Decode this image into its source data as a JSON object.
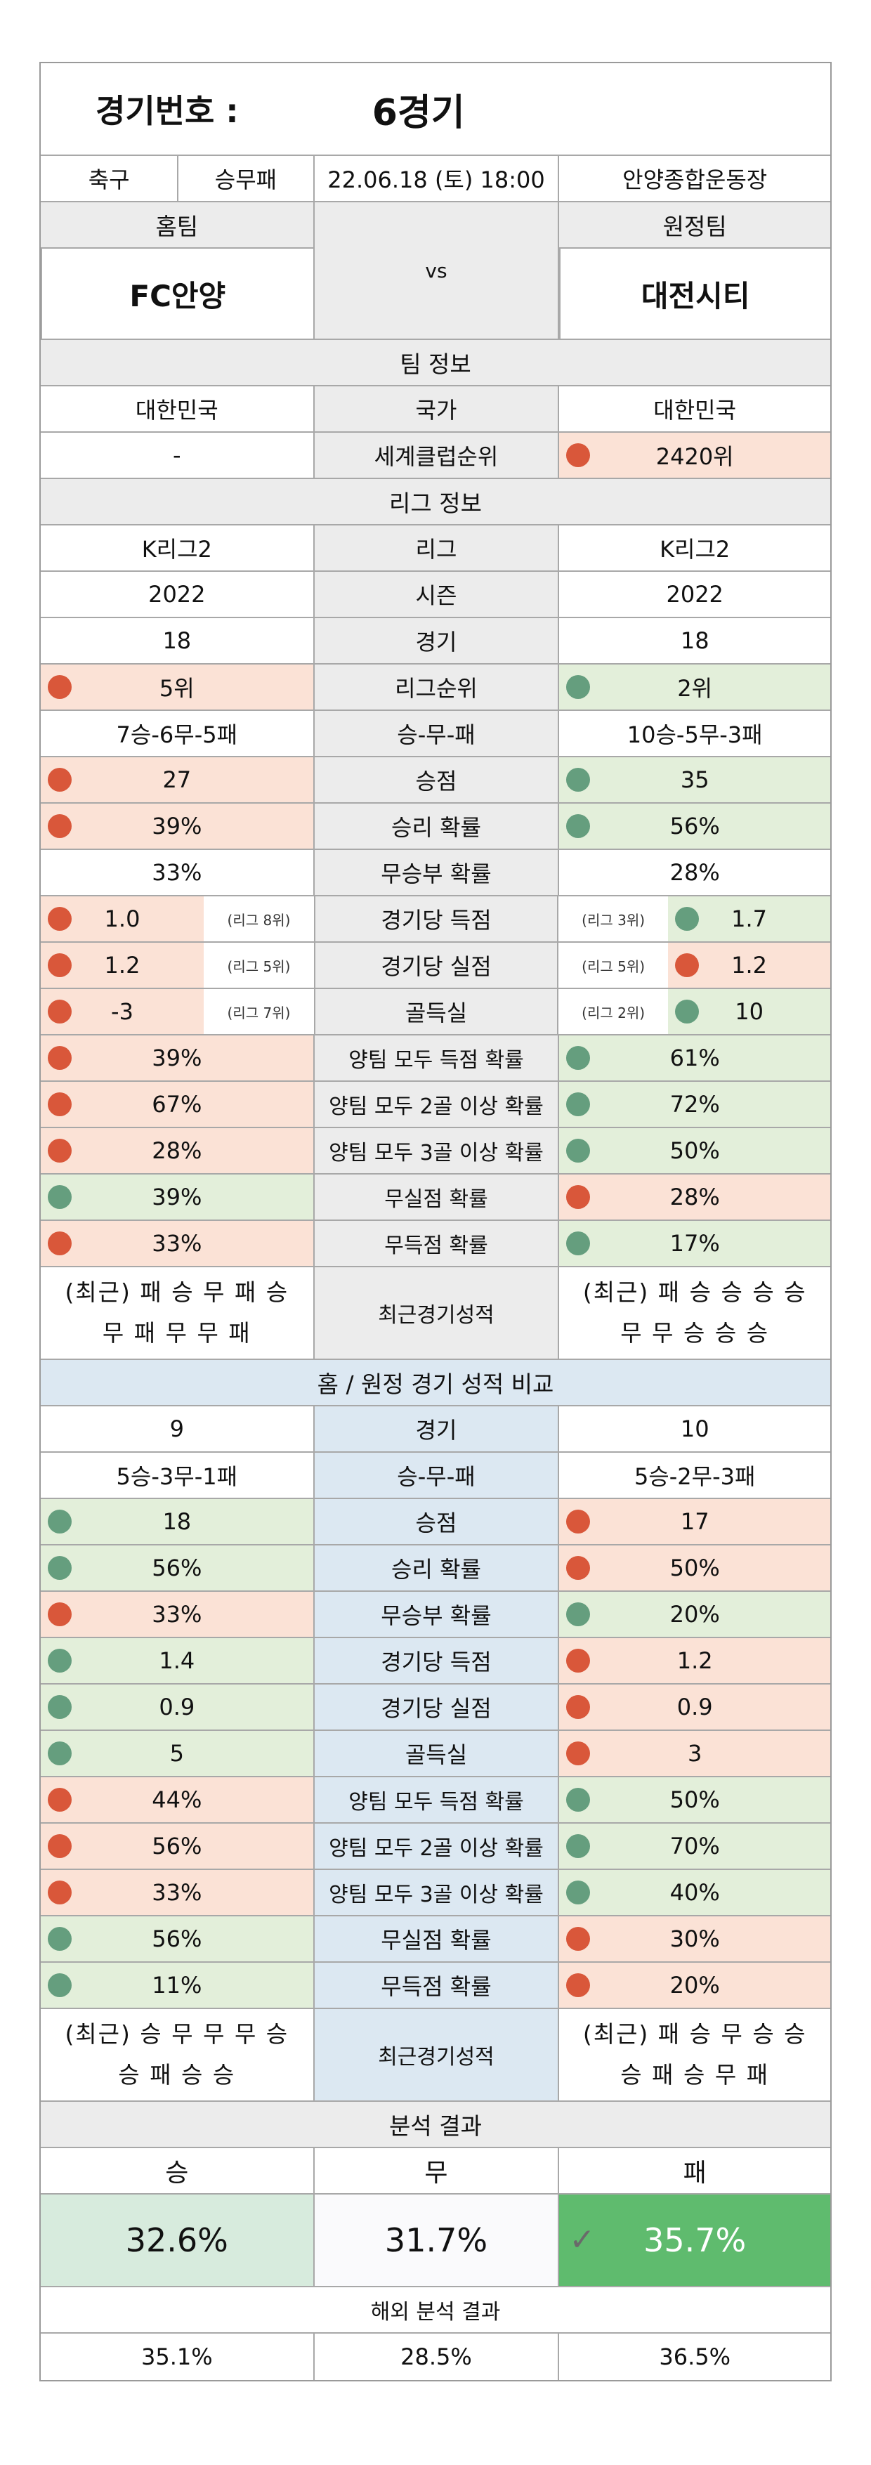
{
  "header": {
    "label": "경기번호 :",
    "game_no": "6경기"
  },
  "info": {
    "sport": "축구",
    "type": "승무패",
    "datetime": "22.06.18 (토) 18:00",
    "venue": "안양종합운동장"
  },
  "teams": {
    "home_label": "홈팀",
    "away_label": "원정팀",
    "vs": "vs",
    "home": "FC안양",
    "away": "대전시티"
  },
  "team_info": {
    "title": "팀 정보",
    "rows": [
      {
        "label": "국가",
        "home": "대한민국",
        "away": "대한민국"
      },
      {
        "label": "세계클럽순위",
        "home": "-",
        "away": "2420위"
      }
    ]
  },
  "league_info": {
    "title": "리그 정보",
    "rows": [
      {
        "label": "리그",
        "home": "K리그2",
        "away": "K리그2"
      },
      {
        "label": "시즌",
        "home": "2022",
        "away": "2022"
      },
      {
        "label": "경기",
        "home": "18",
        "away": "18"
      },
      {
        "label": "리그순위",
        "home": "5위",
        "away": "2위"
      },
      {
        "label": "승-무-패",
        "home": "7승-6무-5패",
        "away": "10승-5무-3패"
      },
      {
        "label": "승점",
        "home": "27",
        "away": "35"
      },
      {
        "label": "승리 확률",
        "home": "39%",
        "away": "56%"
      },
      {
        "label": "무승부 확률",
        "home": "33%",
        "away": "28%"
      }
    ],
    "rank_rows": [
      {
        "label": "경기당 득점",
        "home": "1.0",
        "home_rank": "(리그 8위)",
        "away": "1.7",
        "away_rank": "(리그 3위)"
      },
      {
        "label": "경기당 실점",
        "home": "1.2",
        "home_rank": "(리그 5위)",
        "away": "1.2",
        "away_rank": "(리그 5위)"
      },
      {
        "label": "골득실",
        "home": "-3",
        "home_rank": "(리그 7위)",
        "away": "10",
        "away_rank": "(리그 2위)"
      }
    ],
    "prob_rows": [
      {
        "label": "양팀 모두 득점 확률",
        "home": "39%",
        "away": "61%"
      },
      {
        "label": "양팀 모두 2골 이상 확률",
        "home": "67%",
        "away": "72%"
      },
      {
        "label": "양팀 모두 3골 이상 확률",
        "home": "28%",
        "away": "50%"
      },
      {
        "label": "무실점 확률",
        "home": "39%",
        "away": "28%"
      },
      {
        "label": "무득점 확률",
        "home": "33%",
        "away": "17%"
      }
    ],
    "recent": {
      "label": "최근경기성적",
      "home_1": "(최근) 패 승 무 패 승",
      "home_2": "무 패 무 무 패",
      "away_1": "(최근) 패 승 승 승 승",
      "away_2": "무 무 승 승 승"
    }
  },
  "homeaway": {
    "title": "홈 / 원정 경기 성적 비교",
    "rows": [
      {
        "label": "경기",
        "home": "9",
        "away": "10"
      },
      {
        "label": "승-무-패",
        "home": "5승-3무-1패",
        "away": "5승-2무-3패"
      },
      {
        "label": "승점",
        "home": "18",
        "away": "17"
      },
      {
        "label": "승리 확률",
        "home": "56%",
        "away": "50%"
      },
      {
        "label": "무승부 확률",
        "home": "33%",
        "away": "20%"
      },
      {
        "label": "경기당 득점",
        "home": "1.4",
        "away": "1.2"
      },
      {
        "label": "경기당 실점",
        "home": "0.9",
        "away": "0.9"
      },
      {
        "label": "골득실",
        "home": "5",
        "away": "3"
      },
      {
        "label": "양팀 모두 득점 확률",
        "home": "44%",
        "away": "50%"
      },
      {
        "label": "양팀 모두 2골 이상 확률",
        "home": "56%",
        "away": "70%"
      },
      {
        "label": "양팀 모두 3골 이상 확률",
        "home": "33%",
        "away": "40%"
      },
      {
        "label": "무실점 확률",
        "home": "56%",
        "away": "30%"
      },
      {
        "label": "무득점 확률",
        "home": "11%",
        "away": "20%"
      }
    ],
    "recent": {
      "label": "최근경기성적",
      "home_1": "(최근) 승 무 무 무 승",
      "home_2": "승 패 승 승",
      "away_1": "(최근) 패 승 무 승 승",
      "away_2": "승 패 승 무 패"
    }
  },
  "analysis": {
    "title": "분석 결과",
    "win_label": "승",
    "draw_label": "무",
    "loss_label": "패",
    "win": "32.6%",
    "draw": "31.7%",
    "loss": "35.7%",
    "overseas_title": "해외 분석 결과",
    "o_win": "35.1%",
    "o_draw": "28.5%",
    "o_loss": "36.5%"
  },
  "colors": {
    "red_bg": "#fbe2d6",
    "green_bg": "#e3efda",
    "red_dot": "#d9573a",
    "green_dot": "#659e7e",
    "pick_bg": "#5fbb6e",
    "win_bg": "#d7ebdd"
  }
}
